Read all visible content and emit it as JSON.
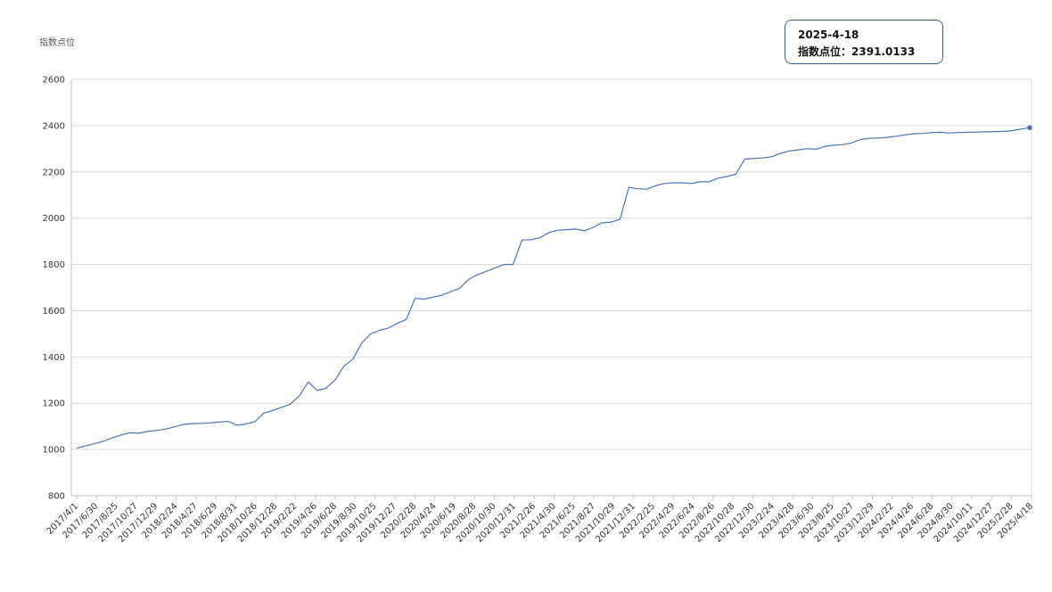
{
  "tooltip": {
    "date": "2025-4-18",
    "label": "指数点位：",
    "value": "2391.0133"
  },
  "colors": {
    "line": "#4a72b8",
    "grid": "#d9d9d9",
    "axis": "#bfbfbf",
    "tooltip_border": "#3d5c8f"
  },
  "chart_data": {
    "type": "line",
    "title": "",
    "xlabel": "",
    "ylabel": "指数点位",
    "ylim": [
      800,
      2600
    ],
    "yticks": [
      800,
      1000,
      1200,
      1400,
      1600,
      1800,
      2000,
      2200,
      2400,
      2600
    ],
    "grid": true,
    "x_tick_labels": [
      "2017/4/1",
      "2017/6/30",
      "2017/8/25",
      "2017/10/27",
      "2017/12/29",
      "2018/2/24",
      "2018/4/27",
      "2018/6/29",
      "2018/8/31",
      "2018/10/26",
      "2018/12/28",
      "2019/2/22",
      "2019/4/26",
      "2019/6/28",
      "2019/8/30",
      "2019/10/25",
      "2019/12/27",
      "2020/2/28",
      "2020/4/24",
      "2020/6/19",
      "2020/8/28",
      "2020/10/30",
      "2020/12/31",
      "2021/2/26",
      "2021/4/30",
      "2021/6/25",
      "2021/8/27",
      "2021/10/29",
      "2021/12/31",
      "2022/2/25",
      "2022/4/29",
      "2022/6/24",
      "2022/8/26",
      "2022/10/28",
      "2022/12/30",
      "2023/2/24",
      "2023/4/28",
      "2023/6/30",
      "2023/8/25",
      "2023/10/27",
      "2023/12/29",
      "2024/2/22",
      "2024/4/26",
      "2024/6/28",
      "2024/8/30",
      "2024/10/11",
      "2024/12/27",
      "2025/2/28",
      "2025/4/18"
    ],
    "series": [
      {
        "values": [
          1005,
          1015,
          1025,
          1035,
          1050,
          1063,
          1072,
          1070,
          1078,
          1082,
          1088,
          1098,
          1108,
          1112,
          1113,
          1115,
          1118,
          1122,
          1105,
          1110,
          1120,
          1157,
          1168,
          1182,
          1196,
          1232,
          1292,
          1255,
          1265,
          1300,
          1360,
          1390,
          1460,
          1500,
          1515,
          1525,
          1545,
          1562,
          1653,
          1650,
          1658,
          1667,
          1682,
          1697,
          1735,
          1755,
          1770,
          1785,
          1800,
          1800,
          1905,
          1907,
          1915,
          1937,
          1948,
          1950,
          1953,
          1945,
          1960,
          1980,
          1983,
          1995,
          2133,
          2127,
          2125,
          2140,
          2150,
          2153,
          2153,
          2150,
          2157,
          2157,
          2173,
          2180,
          2190,
          2255,
          2258,
          2260,
          2265,
          2280,
          2290,
          2295,
          2300,
          2298,
          2310,
          2315,
          2318,
          2325,
          2340,
          2345,
          2346,
          2349,
          2354,
          2360,
          2365,
          2366,
          2370,
          2371,
          2368,
          2370,
          2371,
          2372,
          2373,
          2374,
          2375,
          2378,
          2385,
          2391.0133
        ]
      }
    ]
  }
}
